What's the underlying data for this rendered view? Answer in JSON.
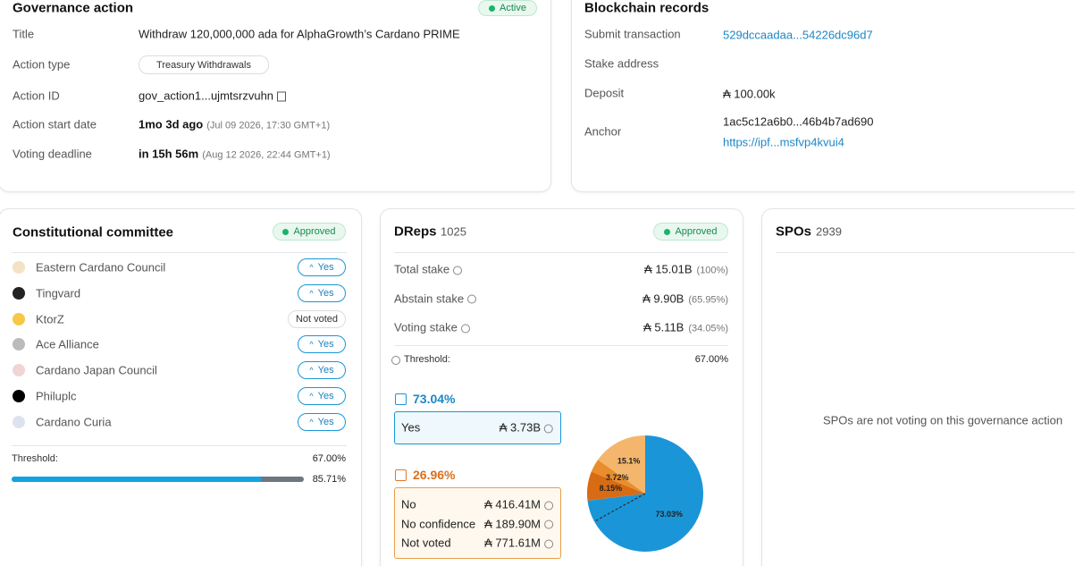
{
  "governance": {
    "title": "Governance action",
    "status": "Active",
    "rows": [
      {
        "label": "Title",
        "value": "Withdraw 120,000,000 ada for AlphaGrowth’s Cardano PRIME"
      },
      {
        "label": "Action type",
        "value": "Treasury Withdrawals"
      },
      {
        "label": "Action ID",
        "value": "gov_action1...ujmtsrzvuhn"
      },
      {
        "label": "Action start date",
        "value": "1mo 3d ago",
        "detail": "(Jul 09 2026, 17:30 GMT+1)"
      },
      {
        "label": "Voting deadline",
        "value": "in 15h 56m",
        "detail": "(Aug 12 2026, 22:44 GMT+1)"
      }
    ]
  },
  "blockchain": {
    "title": "Blockchain records",
    "rows": [
      {
        "label": "Submit transaction",
        "value": "529dccaadaa...54226dc96d7"
      },
      {
        "label": "Stake address"
      },
      {
        "label": "Deposit",
        "value": "₳ 100.00k"
      },
      {
        "label": "Anchor",
        "value": "1ac5c12a6b0...46b4b7ad690",
        "link": "https://ipf...msfvp4kvui4"
      }
    ]
  },
  "committee": {
    "title": "Constitutional committee",
    "status": "Approved",
    "members": [
      {
        "name": "Eastern Cardano Council",
        "vote": "Yes"
      },
      {
        "name": "Tingvard",
        "vote": "Yes"
      },
      {
        "name": "KtorZ",
        "vote": "Not voted"
      },
      {
        "name": "Ace Alliance",
        "vote": "Yes"
      },
      {
        "name": "Cardano Japan Council",
        "vote": "Yes"
      },
      {
        "name": "Philuplc",
        "vote": "Yes"
      },
      {
        "name": "Cardano Curia",
        "vote": "Yes"
      }
    ],
    "threshold_label": "Threshold:",
    "threshold": "67.00%",
    "yes_percent": {
      "value": 85.71,
      "label": "85.71%"
    }
  },
  "dreps": {
    "title": "DReps",
    "count": 1025,
    "status": "Approved",
    "stakes": [
      {
        "label": "Total stake",
        "value": "₳ 15.01B",
        "share": "(100%)"
      },
      {
        "label": "Abstain stake",
        "value": "₳ 9.90B",
        "share": "(65.95%)"
      },
      {
        "label": "Voting stake",
        "value": "₳ 5.11B",
        "share": "(34.05%)"
      }
    ],
    "threshold_label": "Threshold:",
    "threshold": "67.00%",
    "yes": {
      "percent": "73.04%",
      "rows": [
        {
          "label": "Yes",
          "value": "₳ 3.73B"
        }
      ]
    },
    "no": {
      "percent": "26.96%",
      "rows": [
        {
          "label": "No",
          "value": "₳ 416.41M"
        },
        {
          "label": "No confidence",
          "value": "₳ 189.90M"
        },
        {
          "label": "Not voted",
          "value": "₳ 771.61M"
        }
      ]
    },
    "pie": {
      "values": [
        73.03,
        8.15,
        3.72,
        15.1
      ],
      "value_labels": [
        "73.03%",
        "8.15%",
        "3.72%",
        "15.1%"
      ],
      "colors": [
        "#1a96d8",
        "#d86c14",
        "#ea8d2c",
        "#f4b66c"
      ]
    }
  },
  "spos": {
    "title": "SPOs",
    "count": 2939,
    "message": "SPOs are not voting on this governance action"
  }
}
